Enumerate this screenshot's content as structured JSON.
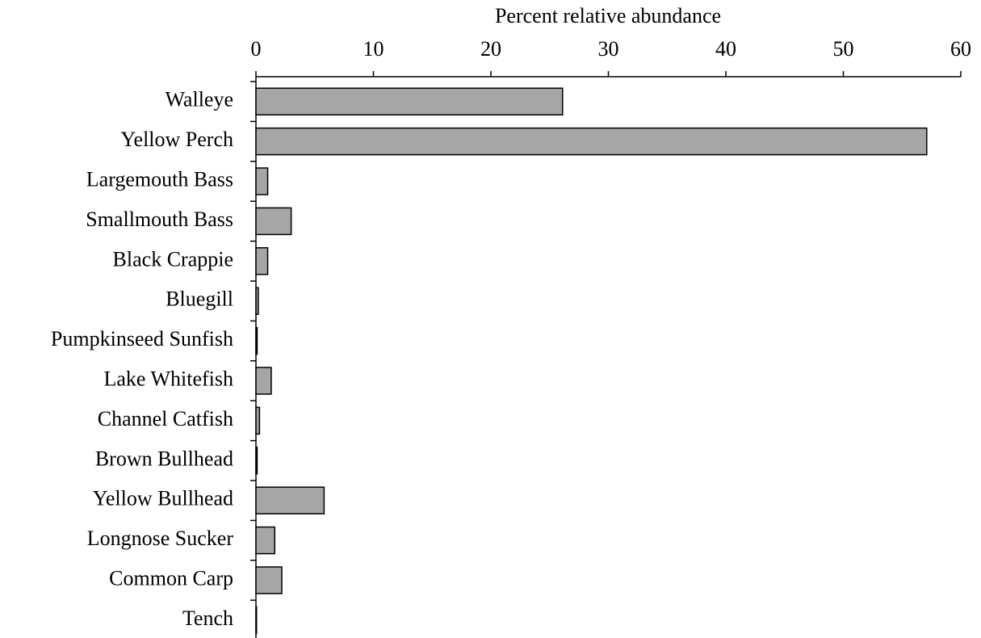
{
  "chart_data": {
    "type": "barh",
    "x_label": "Percent relative abundance",
    "categories": [
      "Walleye",
      "Yellow Perch",
      "Largemouth Bass",
      "Smallmouth Bass",
      "Black Crappie",
      "Bluegill",
      "Pumpkinseed Sunfish",
      "Lake Whitefish",
      "Channel Catfish",
      "Brown Bullhead",
      "Yellow Bullhead",
      "Longnose Sucker",
      "Common Carp",
      "Tench"
    ],
    "values": [
      26.1,
      57.1,
      1.0,
      3.0,
      1.0,
      0.2,
      0.1,
      1.3,
      0.3,
      0.1,
      5.8,
      1.6,
      2.2,
      0.05
    ],
    "color": "#a6a6a6",
    "xlim": [
      0,
      60
    ],
    "xticks": [
      0,
      10,
      20,
      30,
      40,
      50,
      60
    ],
    "x_axis_position": "top",
    "grid": false
  }
}
